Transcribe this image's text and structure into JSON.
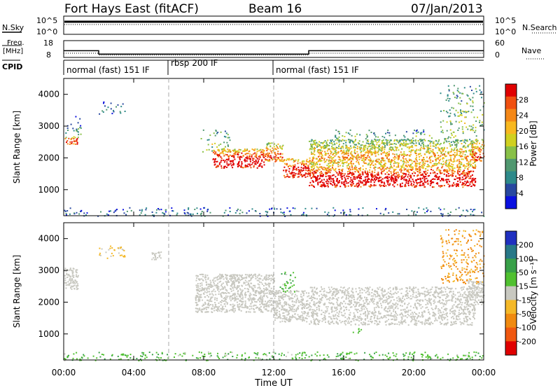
{
  "header": {
    "station": "Fort Hays East (fitACF)",
    "beam": "Beam 16",
    "date": "07/Jan/2013"
  },
  "status_panels": {
    "nsky_label": "N.Sky",
    "nsky_ticks": [
      "10^5",
      "10^0"
    ],
    "nsearch_label": "N.Search",
    "nsearch_ticks": [
      "10^5",
      "10^0"
    ],
    "freq_label_line1": "Freq.",
    "freq_label_line2": "[MHz]",
    "freq_ticks": [
      "18",
      "8"
    ],
    "nave_label": "Nave",
    "nave_ticks": [
      "60",
      "0"
    ],
    "cpid_label": "CPID",
    "cpid_segments": [
      {
        "label": "normal (fast) 151 IF",
        "start_h": 0,
        "end_h": 6
      },
      {
        "label": "rbsp 200 IF",
        "start_h": 6,
        "end_h": 12
      },
      {
        "label": "normal (fast) 151 IF",
        "start_h": 12,
        "end_h": 24
      }
    ],
    "freq_series_mhz": {
      "x_h": [
        0,
        2,
        2,
        14,
        14,
        24
      ],
      "y": [
        12,
        12,
        10,
        10,
        12,
        12
      ]
    },
    "nave_series": {
      "x_h": [
        0,
        2,
        2,
        14,
        14,
        24
      ],
      "y": [
        15,
        15,
        8,
        8,
        15,
        15
      ]
    }
  },
  "axes": {
    "ylabel": "Slant Range [km]",
    "yticks": [
      "1000",
      "2000",
      "3000",
      "4000"
    ],
    "xticks": [
      "00:00",
      "04:00",
      "08:00",
      "12:00",
      "16:00",
      "20:00",
      "00:00"
    ],
    "xlabel": "Time UT"
  },
  "colorbars": {
    "power": {
      "label": "Power [dB]",
      "ticks": [
        "28",
        "24",
        "20",
        "16",
        "12",
        "8",
        "4"
      ],
      "colors": [
        "#e00000",
        "#f05010",
        "#f48818",
        "#f8b820",
        "#d0d020",
        "#88c048",
        "#509870",
        "#2e8a8a",
        "#2848a0",
        "#0a10e0"
      ]
    },
    "velocity": {
      "label": "Velocity [m s⁻¹]",
      "ticks": [
        "200",
        "100",
        "50",
        "15",
        "-15",
        "-50",
        "-100",
        "-200"
      ],
      "colors": [
        "#2030c0",
        "#287888",
        "#38a048",
        "#50c030",
        "#c8c8c0",
        "#f4b828",
        "#f08a10",
        "#f05810",
        "#e00000"
      ]
    }
  },
  "chart_data": [
    {
      "type": "heatmap",
      "name": "Power",
      "x_range_h": [
        0,
        24
      ],
      "y_range_km": [
        180,
        4500
      ],
      "legend": "right colorbar",
      "echo_bands": [
        {
          "t0": 0.0,
          "t1": 0.8,
          "r0": 2450,
          "r1": 2700,
          "intensity": 0.85
        },
        {
          "t0": 0.0,
          "t1": 1.0,
          "r0": 2700,
          "r1": 3100,
          "intensity": 0.3
        },
        {
          "t0": 0.6,
          "t1": 1.0,
          "r0": 2800,
          "r1": 3350,
          "intensity": 0.2
        },
        {
          "t0": 2.0,
          "t1": 3.5,
          "r0": 3400,
          "r1": 3800,
          "intensity": 0.2
        },
        {
          "t0": 7.8,
          "t1": 9.5,
          "r0": 2200,
          "r1": 2900,
          "intensity": 0.4
        },
        {
          "t0": 8.5,
          "t1": 11.5,
          "r0": 1700,
          "r1": 2300,
          "intensity": 0.95
        },
        {
          "t0": 11.5,
          "t1": 12.5,
          "r0": 1900,
          "r1": 2500,
          "intensity": 0.7
        },
        {
          "t0": 12.5,
          "t1": 14.0,
          "r0": 1400,
          "r1": 2000,
          "intensity": 0.9
        },
        {
          "t0": 14.0,
          "t1": 23.5,
          "r0": 1100,
          "r1": 1800,
          "intensity": 0.95
        },
        {
          "t0": 14.0,
          "t1": 23.5,
          "r0": 1800,
          "r1": 2600,
          "intensity": 0.6
        },
        {
          "t0": 15.0,
          "t1": 21.0,
          "r0": 2600,
          "r1": 2900,
          "intensity": 0.35
        },
        {
          "t0": 21.5,
          "t1": 24.0,
          "r0": 2600,
          "r1": 4300,
          "intensity": 0.4
        },
        {
          "t0": 23.3,
          "t1": 24.0,
          "r0": 1900,
          "r1": 2600,
          "intensity": 0.75
        },
        {
          "t0": 0.0,
          "t1": 24.0,
          "r0": 180,
          "r1": 450,
          "intensity": 0.2
        }
      ]
    },
    {
      "type": "heatmap",
      "name": "Velocity",
      "x_range_h": [
        0,
        24
      ],
      "y_range_km": [
        180,
        4500
      ],
      "legend": "right colorbar",
      "echo_bands": [
        {
          "t0": 0.0,
          "t1": 0.8,
          "r0": 2400,
          "r1": 3100,
          "velocity": 0
        },
        {
          "t0": 2.0,
          "t1": 3.5,
          "r0": 3400,
          "r1": 3800,
          "velocity": -20
        },
        {
          "t0": 5.0,
          "t1": 5.6,
          "r0": 3350,
          "r1": 3600,
          "velocity": 0
        },
        {
          "t0": 7.5,
          "t1": 12.0,
          "r0": 1700,
          "r1": 2900,
          "velocity": 0
        },
        {
          "t0": 12.0,
          "t1": 14.0,
          "r0": 1400,
          "r1": 2400,
          "velocity": 0
        },
        {
          "t0": 12.3,
          "t1": 13.2,
          "r0": 2300,
          "r1": 3000,
          "velocity": 40
        },
        {
          "t0": 14.0,
          "t1": 23.5,
          "r0": 1300,
          "r1": 2500,
          "velocity": 0
        },
        {
          "t0": 16.5,
          "t1": 17.2,
          "r0": 1000,
          "r1": 1200,
          "velocity": 40
        },
        {
          "t0": 21.5,
          "t1": 24.0,
          "r0": 2600,
          "r1": 4300,
          "velocity": -60
        },
        {
          "t0": 23.0,
          "t1": 24.0,
          "r0": 1900,
          "r1": 2700,
          "velocity": 0
        },
        {
          "t0": 0.0,
          "t1": 24.0,
          "r0": 180,
          "r1": 450,
          "velocity": 40
        }
      ]
    }
  ]
}
